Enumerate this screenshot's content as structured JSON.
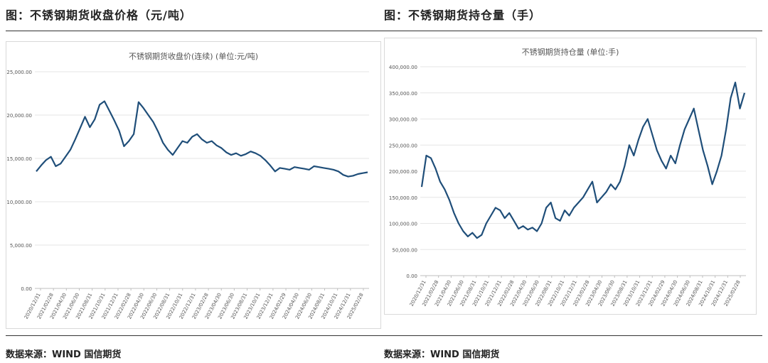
{
  "left_caption": "图：不锈钢期货收盘价格（元/吨）",
  "right_caption": "图：不锈钢期货持仓量（手）",
  "left_source": "数据来源：WIND 国信期货",
  "right_source": "数据来源：WIND 国信期货",
  "colors": {
    "line": "#1f4e79",
    "grid": "#e6e6e6",
    "axis": "#bfbfbf",
    "text": "#555555"
  },
  "chart_data": [
    {
      "type": "line",
      "title": "不锈钢期货收盘价(连续) (单位:元/吨)",
      "ylim": [
        0,
        25000
      ],
      "yticks": [
        0,
        5000,
        10000,
        15000,
        20000,
        25000
      ],
      "ytick_labels": [
        "0.00",
        "5,000.00",
        "10,000.00",
        "15,000.00",
        "20,000.00",
        "25,000.00"
      ],
      "xtick_labels": [
        "2020/12/31",
        "2021/02/28",
        "2021/04/30",
        "2021/06/30",
        "2021/08/31",
        "2021/10/31",
        "2021/12/31",
        "2022/02/28",
        "2022/04/30",
        "2022/06/30",
        "2022/08/31",
        "2022/10/31",
        "2022/12/31",
        "2023/02/28",
        "2023/04/30",
        "2023/06/30",
        "2023/08/31",
        "2023/10/31",
        "2023/12/31",
        "2024/02/29",
        "2024/04/30",
        "2024/06/30",
        "2024/08/31",
        "2024/10/31",
        "2024/12/31",
        "2025/02/28"
      ],
      "series": [
        {
          "values": [
            13500,
            14200,
            14800,
            15200,
            14100,
            14400,
            15200,
            16000,
            17200,
            18500,
            19800,
            18600,
            19500,
            21200,
            21600,
            20500,
            19400,
            18200,
            16400,
            17000,
            17800,
            21500,
            20800,
            20000,
            19200,
            18100,
            16800,
            16000,
            15400,
            16200,
            17000,
            16800,
            17500,
            17800,
            17200,
            16800,
            17000,
            16500,
            16200,
            15700,
            15400,
            15600,
            15300,
            15500,
            15800,
            15600,
            15300,
            14800,
            14200,
            13500,
            13900,
            13800,
            13700,
            14000,
            13900,
            13800,
            13700,
            14100,
            14000,
            13900,
            13800,
            13700,
            13500,
            13100,
            12900,
            13000,
            13200,
            13300,
            13400
          ]
        }
      ]
    },
    {
      "type": "line",
      "title": "不锈钢期货持仓量 (单位:手)",
      "ylim": [
        0,
        400000
      ],
      "yticks": [
        0,
        50000,
        100000,
        150000,
        200000,
        250000,
        300000,
        350000,
        400000
      ],
      "ytick_labels": [
        "0.00",
        "50,000.00",
        "100,000.00",
        "150,000.00",
        "200,000.00",
        "250,000.00",
        "300,000.00",
        "350,000.00",
        "400,000.00"
      ],
      "xtick_labels": [
        "2020/12/31",
        "2021/02/28",
        "2021/04/30",
        "2021/06/30",
        "2021/08/31",
        "2021/10/31",
        "2021/12/31",
        "2022/02/28",
        "2022/04/30",
        "2022/06/30",
        "2022/08/31",
        "2022/10/31",
        "2022/12/31",
        "2023/02/28",
        "2023/04/30",
        "2023/06/30",
        "2023/08/31",
        "2023/10/31",
        "2023/12/31",
        "2024/02/29",
        "2024/04/30",
        "2024/06/30",
        "2024/08/31",
        "2024/10/31",
        "2024/12/31",
        "2025/02/28"
      ],
      "series": [
        {
          "values": [
            170000,
            230000,
            225000,
            205000,
            180000,
            165000,
            145000,
            120000,
            100000,
            85000,
            75000,
            82000,
            72000,
            78000,
            100000,
            115000,
            130000,
            125000,
            110000,
            120000,
            105000,
            90000,
            95000,
            88000,
            92000,
            85000,
            100000,
            130000,
            140000,
            110000,
            105000,
            125000,
            115000,
            130000,
            140000,
            150000,
            165000,
            180000,
            140000,
            150000,
            160000,
            175000,
            165000,
            180000,
            210000,
            250000,
            230000,
            260000,
            285000,
            300000,
            270000,
            240000,
            220000,
            205000,
            230000,
            215000,
            250000,
            280000,
            300000,
            320000,
            280000,
            240000,
            210000,
            175000,
            200000,
            230000,
            280000,
            340000,
            370000,
            320000,
            350000
          ]
        }
      ]
    }
  ]
}
